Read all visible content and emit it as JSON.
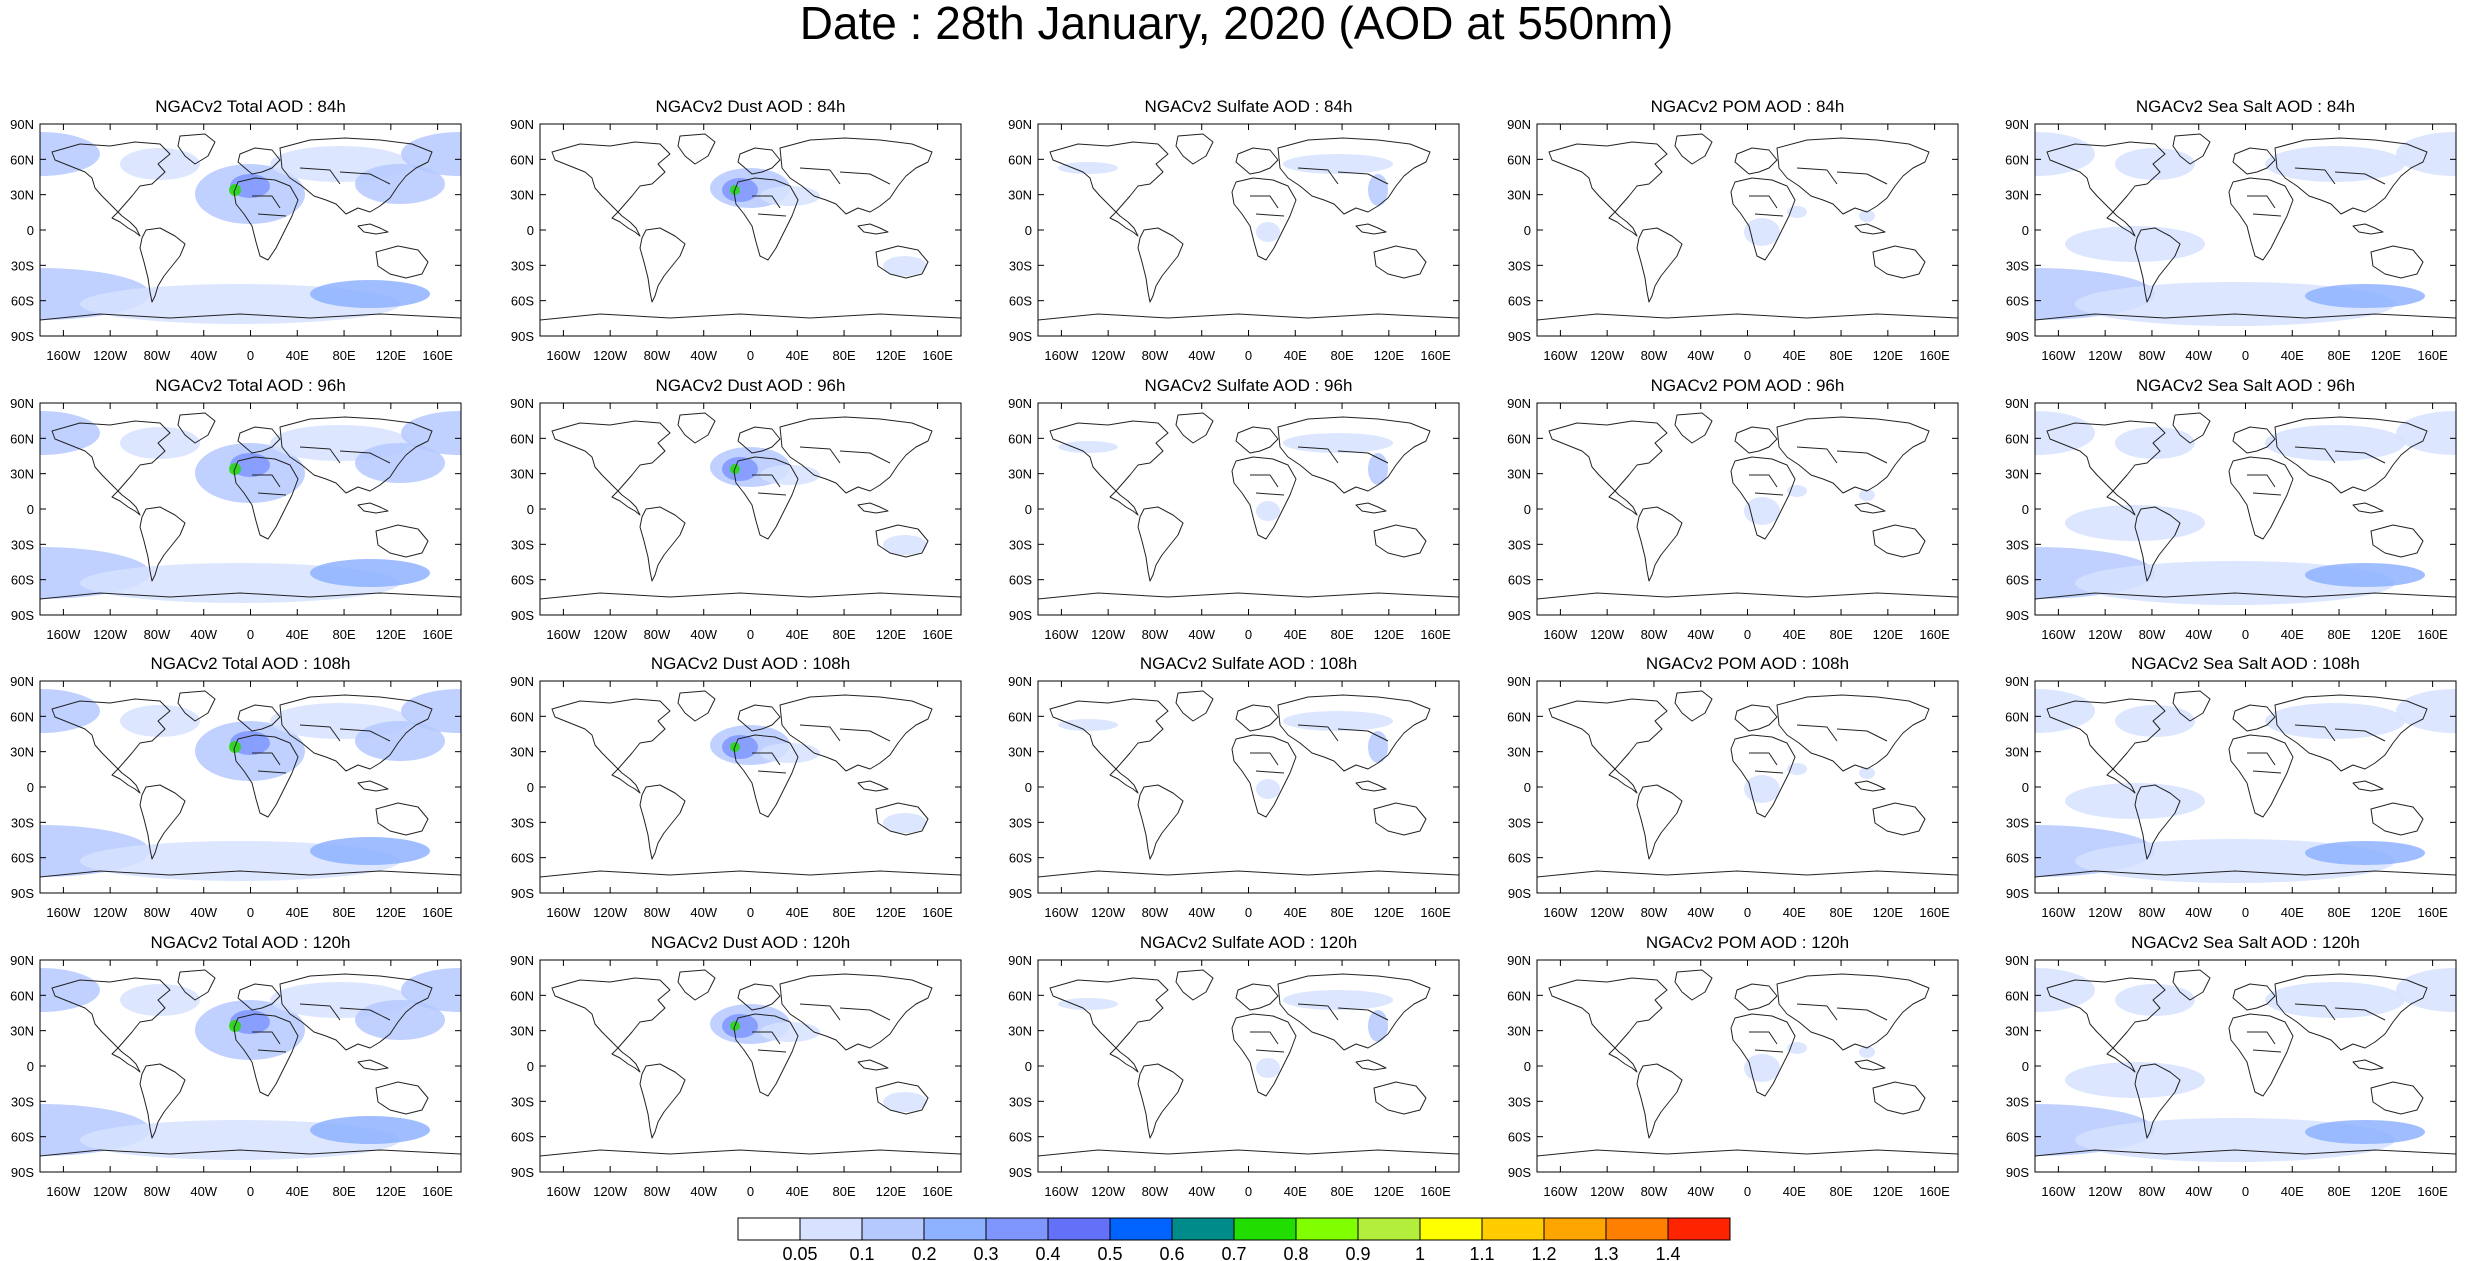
{
  "title": "Date : 28th January, 2020 (AOD at 550nm)",
  "grid": {
    "row_forecast_hours": [
      "84h",
      "96h",
      "108h",
      "120h"
    ],
    "panel_titles": [
      [
        "NGACv2 Total AOD : 84h",
        "NGACv2 Dust AOD : 84h",
        "NGACv2 Sulfate AOD : 84h",
        "NGACv2 POM AOD : 84h",
        "NGACv2 Sea Salt AOD : 84h"
      ],
      [
        "NGACv2 Total AOD : 96h",
        "NGACv2 Dust AOD : 96h",
        "NGACv2 Sulfate AOD : 96h",
        "NGACv2 POM AOD : 96h",
        "NGACv2 Sea Salt AOD : 96h"
      ],
      [
        "NGACv2 Total AOD : 108h",
        "NGACv2 Dust AOD : 108h",
        "NGACv2 Sulfate AOD : 108h",
        "NGACv2 POM AOD : 108h",
        "NGACv2 Sea Salt AOD : 108h"
      ],
      [
        "NGACv2 Total AOD : 120h",
        "NGACv2 Dust AOD : 120h",
        "NGACv2 Sulfate AOD : 120h",
        "NGACv2 POM AOD : 120h",
        "NGACv2 Sea Salt  AOD : 120h"
      ]
    ],
    "lat_labels": [
      "90N",
      "60N",
      "30N",
      "0",
      "30S",
      "60S",
      "90S"
    ],
    "lon_labels": [
      "160W",
      "120W",
      "80W",
      "40W",
      "0",
      "40E",
      "80E",
      "120E",
      "160E"
    ],
    "lon_values": [
      -160,
      -120,
      -80,
      -40,
      0,
      40,
      80,
      120,
      160
    ]
  },
  "colorbar": {
    "labels": [
      "0.05",
      "0.1",
      "0.2",
      "0.3",
      "0.4",
      "0.5",
      "0.6",
      "0.7",
      "0.8",
      "0.9",
      "1",
      "1.1",
      "1.2",
      "1.3",
      "1.4"
    ],
    "colors": [
      "#ffffff",
      "#d6e2ff",
      "#b5c9ff",
      "#8eb2ff",
      "#7f96ff",
      "#6370f8",
      "#0062ff",
      "#008b8b",
      "#22dd00",
      "#7fff00",
      "#b4ee3c",
      "#ffff00",
      "#ffcc00",
      "#ffa500",
      "#ff7f00",
      "#ff2400"
    ]
  }
}
